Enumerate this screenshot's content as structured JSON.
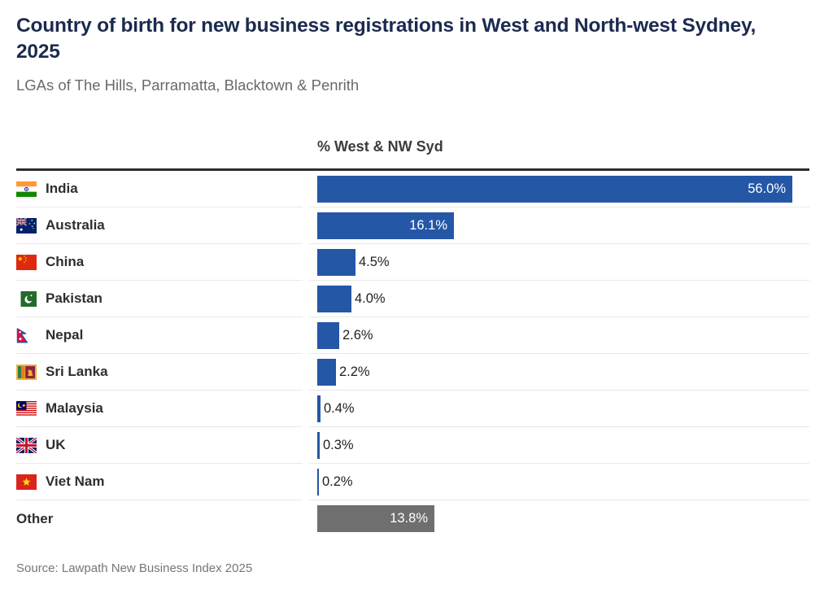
{
  "page": {
    "title": "Country of birth for new business registrations in West and North-west Sydney, 2025",
    "subtitle": "LGAs of The Hills, Parramatta, Blacktown & Penrith",
    "source": "Source: Lawpath New Business Index 2025"
  },
  "colors": {
    "bar_blue": "#2457a6",
    "bar_gray": "#6f6f6f",
    "title_navy": "#1b2a4f",
    "subtitle_gray": "#6a6a6a",
    "header_dark": "#3c3c3c",
    "divider_dark": "#2d2d2d",
    "separator_light": "#e9e9e9"
  },
  "chart_data": {
    "type": "bar",
    "orientation": "horizontal",
    "title": "Country of birth for new business registrations in West and North-west Sydney, 2025",
    "subtitle": "LGAs of The Hills, Parramatta, Blacktown & Penrith",
    "value_column_header": "% West & NW Syd",
    "source": "Source: Lawpath New Business Index 2025",
    "xlim": [
      0,
      56.0
    ],
    "grid": false,
    "legend": "none",
    "categories": [
      "India",
      "Australia",
      "China",
      "Pakistan",
      "Nepal",
      "Sri Lanka",
      "Malaysia",
      "UK",
      "Viet Nam",
      "Other"
    ],
    "values": [
      56.0,
      16.1,
      4.5,
      4.0,
      2.6,
      2.2,
      0.4,
      0.3,
      0.2,
      13.8
    ],
    "rows": [
      {
        "label": "India",
        "flag": "india",
        "value": 56.0,
        "value_label": "56.0%",
        "color": "#2457a6"
      },
      {
        "label": "Australia",
        "flag": "australia",
        "value": 16.1,
        "value_label": "16.1%",
        "color": "#2457a6"
      },
      {
        "label": "China",
        "flag": "china",
        "value": 4.5,
        "value_label": "4.5%",
        "color": "#2457a6"
      },
      {
        "label": "Pakistan",
        "flag": "pakistan",
        "value": 4.0,
        "value_label": "4.0%",
        "color": "#2457a6"
      },
      {
        "label": "Nepal",
        "flag": "nepal",
        "value": 2.6,
        "value_label": "2.6%",
        "color": "#2457a6"
      },
      {
        "label": "Sri Lanka",
        "flag": "sri-lanka",
        "value": 2.2,
        "value_label": "2.2%",
        "color": "#2457a6"
      },
      {
        "label": "Malaysia",
        "flag": "malaysia",
        "value": 0.4,
        "value_label": "0.4%",
        "color": "#2457a6"
      },
      {
        "label": "UK",
        "flag": "uk",
        "value": 0.3,
        "value_label": "0.3%",
        "color": "#2457a6"
      },
      {
        "label": "Viet Nam",
        "flag": "viet-nam",
        "value": 0.2,
        "value_label": "0.2%",
        "color": "#2457a6"
      },
      {
        "label": "Other",
        "flag": null,
        "value": 13.8,
        "value_label": "13.8%",
        "color": "#6f6f6f"
      }
    ]
  }
}
